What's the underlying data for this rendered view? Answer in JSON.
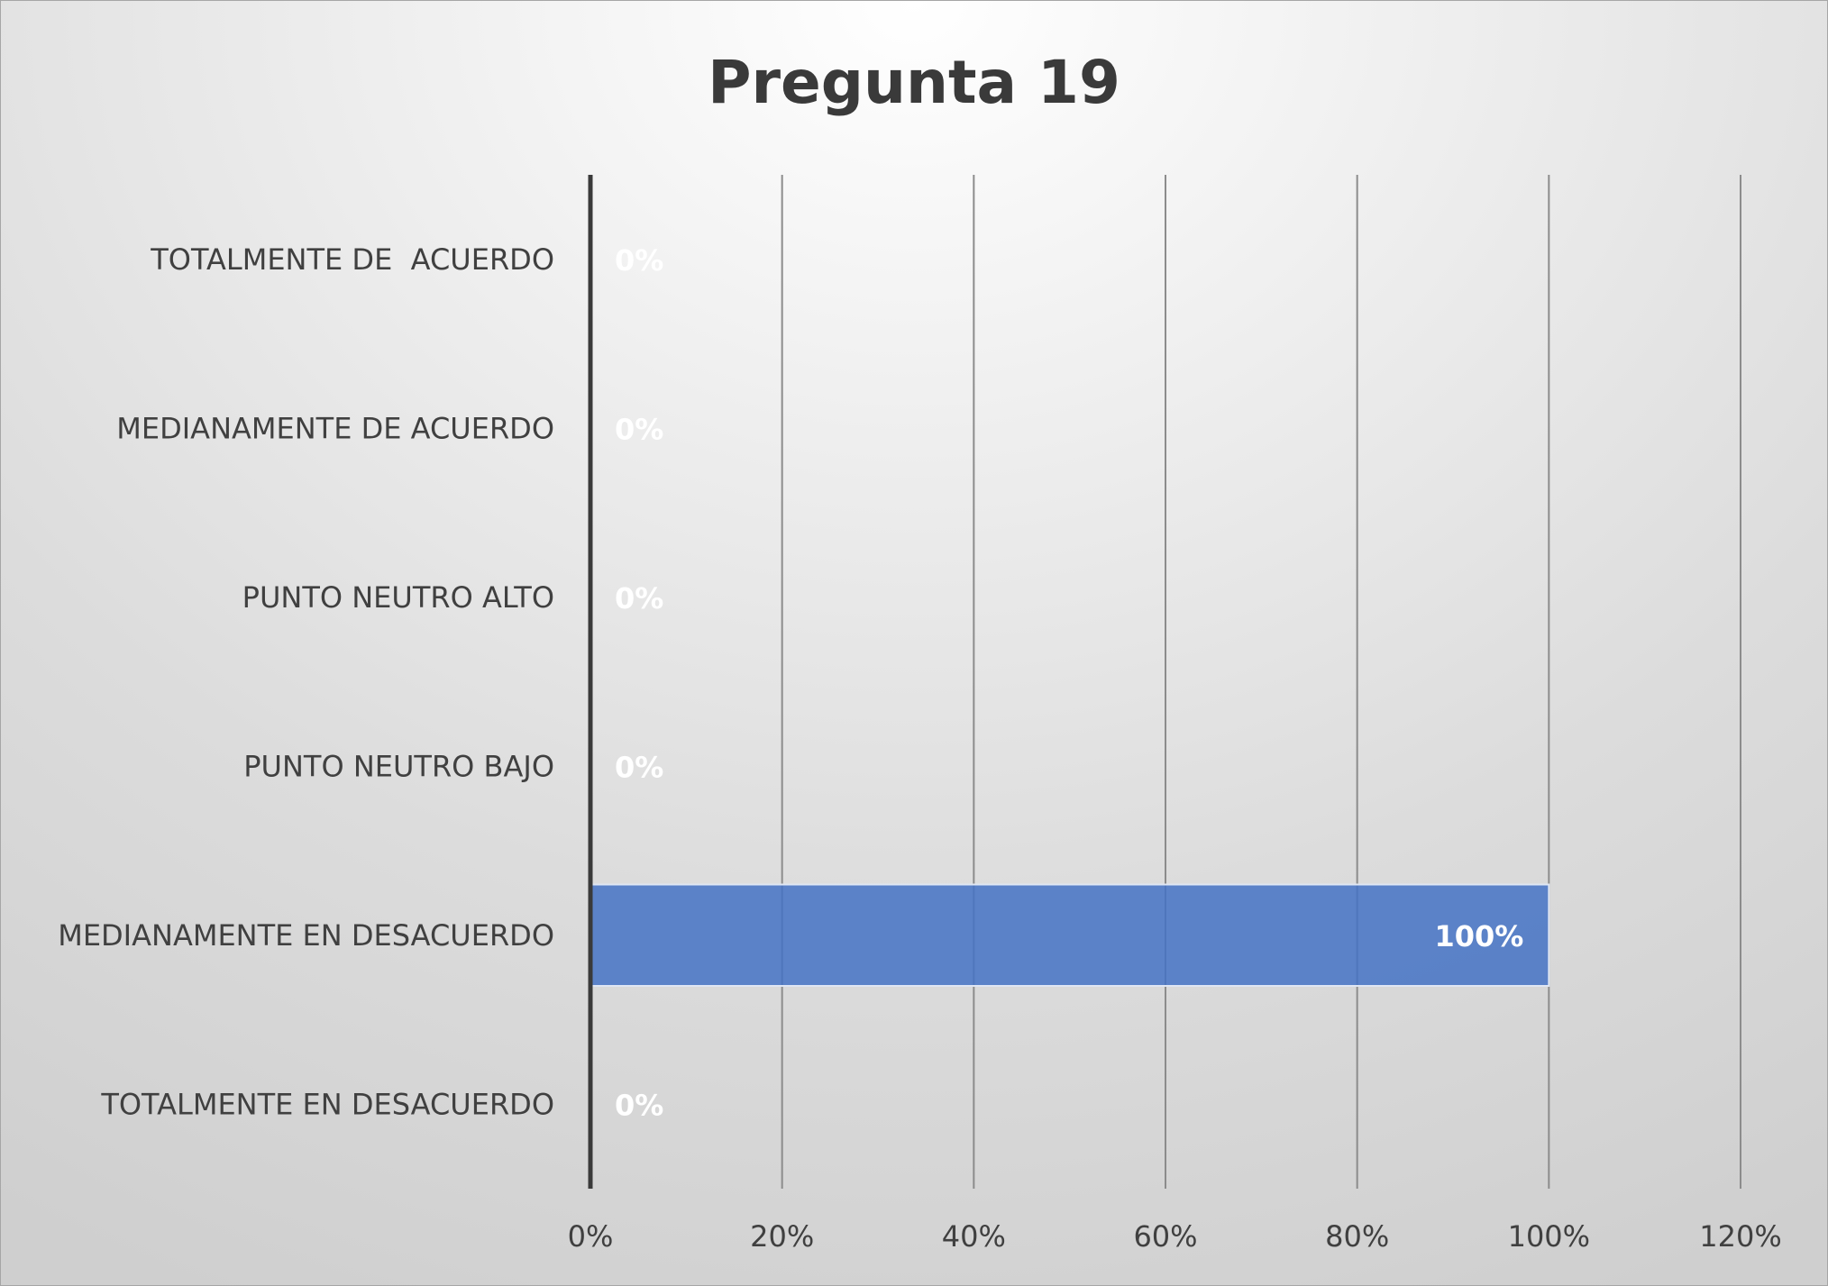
{
  "chart_data": {
    "type": "bar",
    "orientation": "horizontal",
    "title": "Pregunta 19",
    "xlabel": "",
    "ylabel": "",
    "categories": [
      "TOTALMENTE DE  ACUERDO",
      "MEDIANAMENTE DE ACUERDO",
      "PUNTO NEUTRO ALTO",
      "PUNTO NEUTRO BAJO",
      "MEDIANAMENTE EN DESACUERDO",
      "TOTALMENTE EN DESACUERDO"
    ],
    "values": [
      0,
      0,
      0,
      0,
      100,
      0
    ],
    "data_labels": [
      "0%",
      "0%",
      "0%",
      "0%",
      "100%",
      "0%"
    ],
    "xlim": [
      0,
      120
    ],
    "x_ticks": [
      0,
      20,
      40,
      60,
      80,
      100,
      120
    ],
    "x_tick_labels": [
      "0%",
      "20%",
      "40%",
      "60%",
      "80%",
      "100%",
      "120%"
    ],
    "grid": "vertical",
    "legend": "none",
    "bar_color": "#4472c4",
    "data_label_color": "#ffffff"
  }
}
